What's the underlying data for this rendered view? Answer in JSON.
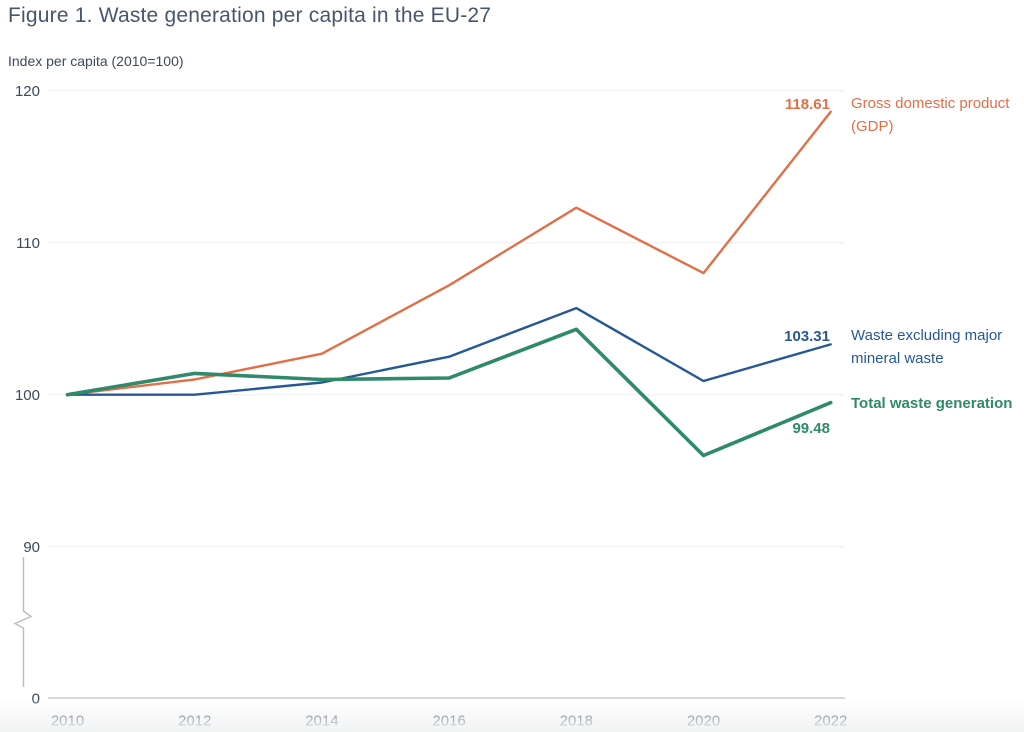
{
  "chart_data": {
    "type": "line",
    "title": "Figure 1. Waste generation per capita in the EU-27",
    "ylabel": "Index per capita (2010=100)",
    "x": [
      2010,
      2012,
      2014,
      2016,
      2018,
      2020,
      2022
    ],
    "y_ticks": [
      120,
      110,
      100,
      90,
      0
    ],
    "axis_break_between": [
      0,
      90
    ],
    "grid": "horizontal",
    "legend_position": "right-annotations",
    "colors": {
      "grid": "#ededed",
      "zero_axis": "#c7ccd1",
      "axis_break": "#b6bcc3",
      "tick_text": "#3b4a5a",
      "title_text": "#47566a"
    },
    "series": [
      {
        "name": "Gross domestic product (GDP)",
        "end_label": "118.61",
        "color": "#df7048",
        "width": 2.4,
        "values": [
          100,
          101.0,
          102.7,
          107.2,
          112.3,
          108.0,
          118.61
        ]
      },
      {
        "name": "Waste excluding major mineral waste",
        "end_label": "103.31",
        "color": "#275896",
        "width": 2.4,
        "values": [
          100,
          100.0,
          100.8,
          102.5,
          105.7,
          100.9,
          103.31
        ]
      },
      {
        "name": "Total waste generation",
        "end_label": "99.48",
        "color": "#2e8a6b",
        "width": 3.6,
        "values": [
          100,
          101.4,
          101.0,
          101.1,
          104.3,
          96.0,
          99.48
        ]
      }
    ]
  }
}
